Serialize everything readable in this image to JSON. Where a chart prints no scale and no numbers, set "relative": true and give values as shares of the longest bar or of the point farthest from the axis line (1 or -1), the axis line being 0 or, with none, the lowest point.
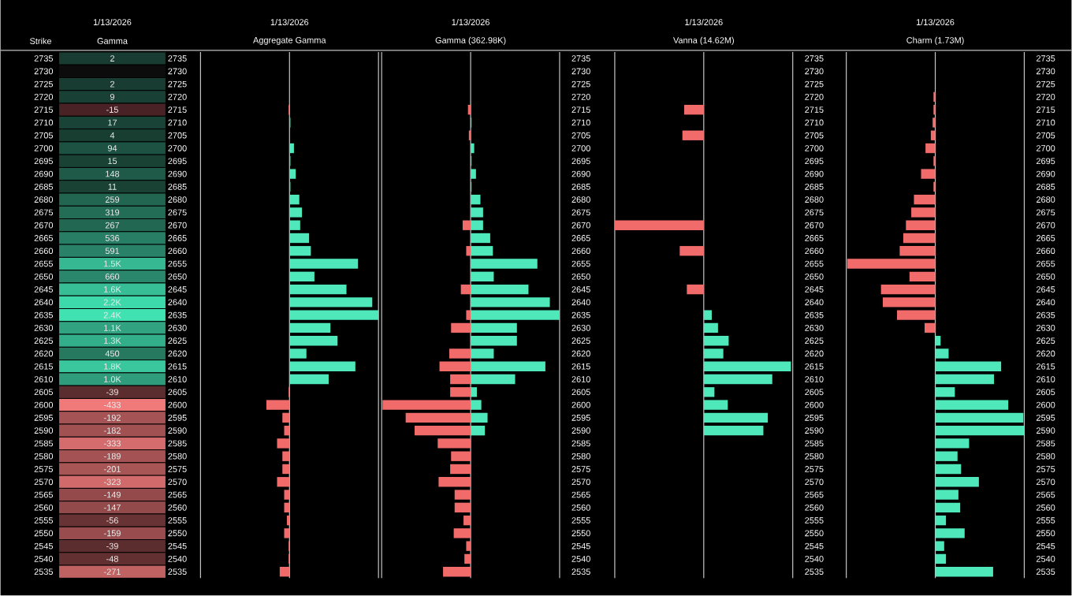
{
  "chart_data": [
    {
      "type": "heatmap",
      "title": "Gamma",
      "subtitle": "1/13/2026",
      "ylabel": "Strike",
      "categories": [
        null
      ],
      "y_categories": [
        "2735",
        "2730",
        "2725",
        "2720",
        "2715",
        "2710",
        "2705",
        "2700",
        "2695",
        "2690",
        "2685",
        "2680",
        "2675",
        "2670",
        "2665",
        "2660",
        "2655",
        "2650",
        "2645",
        "2640",
        "2635",
        "2630",
        "2625",
        "2620",
        "2615",
        "2610",
        "2605",
        "2600",
        "2595",
        "2590",
        "2585",
        "2580",
        "2575",
        "2570",
        "2565",
        "2560",
        "2555",
        "2550",
        "2545",
        "2540",
        "2535"
      ],
      "y2_categories": [
        "2735",
        "2730",
        "2725",
        "2720",
        "2715",
        "2710",
        "2705",
        "2700",
        "2695",
        "2690",
        "2685",
        "2680",
        "2675",
        "2670",
        "2665",
        "2660",
        "2655",
        "2650",
        "2645",
        "2640",
        "2635",
        "2630",
        "2625",
        "2620",
        "2615",
        "2610",
        "2605",
        "2600",
        "2595",
        "2590",
        "2585",
        "2580",
        "2575",
        "2570",
        "2565",
        "2560",
        "2555",
        "2550",
        "2545",
        "2540",
        "2535"
      ],
      "cells": [
        [
          2
        ],
        [
          null
        ],
        [
          2
        ],
        [
          9
        ],
        [
          -15
        ],
        [
          17
        ],
        [
          4
        ],
        [
          94
        ],
        [
          15
        ],
        [
          148
        ],
        [
          11
        ],
        [
          259
        ],
        [
          319
        ],
        [
          267
        ],
        [
          536
        ],
        [
          591
        ],
        [
          1500
        ],
        [
          660
        ],
        [
          1600
        ],
        [
          2200
        ],
        [
          2400
        ],
        [
          1100
        ],
        [
          1300
        ],
        [
          450
        ],
        [
          1800
        ],
        [
          1000
        ],
        [
          -39
        ],
        [
          -433
        ],
        [
          -192
        ],
        [
          -182
        ],
        [
          -333
        ],
        [
          -189
        ],
        [
          -201
        ],
        [
          -323
        ],
        [
          -149
        ],
        [
          -147
        ],
        [
          -56
        ],
        [
          -159
        ],
        [
          -39
        ],
        [
          -48
        ],
        [
          -271
        ]
      ],
      "cell_labels": [
        [
          "2"
        ],
        [
          null
        ],
        [
          "2"
        ],
        [
          "9"
        ],
        [
          "-15"
        ],
        [
          "17"
        ],
        [
          "4"
        ],
        [
          "94"
        ],
        [
          "15"
        ],
        [
          "148"
        ],
        [
          "11"
        ],
        [
          "259"
        ],
        [
          "319"
        ],
        [
          "267"
        ],
        [
          "536"
        ],
        [
          "591"
        ],
        [
          "1.5K"
        ],
        [
          "660"
        ],
        [
          "1.6K"
        ],
        [
          "2.2K"
        ],
        [
          "2.4K"
        ],
        [
          "1.1K"
        ],
        [
          "1.3K"
        ],
        [
          "450"
        ],
        [
          "1.8K"
        ],
        [
          "1.0K"
        ],
        [
          "-39"
        ],
        [
          "-433"
        ],
        [
          "-192"
        ],
        [
          "-182"
        ],
        [
          "-333"
        ],
        [
          "-189"
        ],
        [
          "-201"
        ],
        [
          "-323"
        ],
        [
          "-149"
        ],
        [
          "-147"
        ],
        [
          "-56"
        ],
        [
          "-159"
        ],
        [
          "-39"
        ],
        [
          "-48"
        ],
        [
          "-271"
        ]
      ]
    },
    {
      "type": "bar",
      "orientation": "horizontal",
      "relative": true,
      "tick_labels": false,
      "title": "Aggregate Gamma",
      "subtitle": "1/13/2026",
      "categories": [
        "2735",
        "2730",
        "2725",
        "2720",
        "2715",
        "2710",
        "2705",
        "2700",
        "2695",
        "2690",
        "2685",
        "2680",
        "2675",
        "2670",
        "2665",
        "2660",
        "2655",
        "2650",
        "2645",
        "2640",
        "2635",
        "2630",
        "2625",
        "2620",
        "2615",
        "2610",
        "2605",
        "2600",
        "2595",
        "2590",
        "2585",
        "2580",
        "2575",
        "2570",
        "2565",
        "2560",
        "2555",
        "2550",
        "2545",
        "2540",
        "2535"
      ],
      "values": [
        null,
        null,
        null,
        null,
        -0.01,
        0.01,
        null,
        0.05,
        0.01,
        0.07,
        0.01,
        0.11,
        0.14,
        0.12,
        0.22,
        0.24,
        0.77,
        0.28,
        0.64,
        0.93,
        1,
        0.46,
        0.54,
        0.19,
        0.74,
        0.44,
        -0.01,
        -0.26,
        -0.08,
        -0.06,
        -0.14,
        -0.08,
        -0.08,
        -0.14,
        -0.06,
        -0.06,
        -0.03,
        -0.06,
        -0.01,
        -0.01,
        -0.11
      ],
      "colors": [
        null,
        null,
        null,
        null,
        "#f26b6b",
        "#4ee8bb",
        null,
        "#4ee8bb",
        "#4ee8bb",
        "#4ee8bb",
        "#4ee8bb",
        "#4ee8bb",
        "#4ee8bb",
        "#4ee8bb",
        "#4ee8bb",
        "#4ee8bb",
        "#4ee8bb",
        "#4ee8bb",
        "#4ee8bb",
        "#4ee8bb",
        "#4ee8bb",
        "#4ee8bb",
        "#4ee8bb",
        "#4ee8bb",
        "#4ee8bb",
        "#4ee8bb",
        "#f26b6b",
        "#f26b6b",
        "#f26b6b",
        "#f26b6b",
        "#f26b6b",
        "#f26b6b",
        "#f26b6b",
        "#f26b6b",
        "#f26b6b",
        "#f26b6b",
        "#f26b6b",
        "#f26b6b",
        "#f26b6b",
        "#f26b6b",
        "#f26b6b"
      ]
    },
    {
      "type": "bar",
      "orientation": "horizontal",
      "relative": true,
      "tick_labels": "y",
      "title": "Gamma (362.98K)",
      "subtitle": "1/13/2026",
      "categories": [
        "2735",
        "2730",
        "2725",
        "2720",
        "2715",
        "2710",
        "2705",
        "2700",
        "2695",
        "2690",
        "2685",
        "2680",
        "2675",
        "2670",
        "2665",
        "2660",
        "2655",
        "2650",
        "2645",
        "2640",
        "2635",
        "2630",
        "2625",
        "2620",
        "2615",
        "2610",
        "2605",
        "2600",
        "2595",
        "2590",
        "2585",
        "2580",
        "2575",
        "2570",
        "2565",
        "2560",
        "2555",
        "2550",
        "2545",
        "2540",
        "2535"
      ],
      "series": [
        {
          "color": "#f26b6b",
          "values": [
            null,
            null,
            null,
            null,
            -0.03,
            null,
            -0.02,
            null,
            null,
            null,
            null,
            null,
            null,
            -0.09,
            null,
            -0.05,
            null,
            null,
            -0.11,
            null,
            -0.05,
            -0.22,
            null,
            -0.24,
            -0.35,
            -0.23,
            -0.23,
            -0.99,
            -0.73,
            -0.63,
            -0.37,
            -0.22,
            -0.23,
            -0.36,
            -0.18,
            -0.18,
            -0.08,
            -0.19,
            -0.05,
            -0.07,
            -0.31
          ]
        },
        {
          "color": "#4ee8bb",
          "values": [
            null,
            null,
            null,
            null,
            null,
            0.01,
            null,
            0.04,
            0.01,
            0.06,
            0.01,
            0.11,
            0.14,
            0.14,
            0.22,
            0.25,
            0.75,
            0.26,
            0.65,
            0.89,
            1,
            0.52,
            0.52,
            0.26,
            0.84,
            0.5,
            0.07,
            0.12,
            0.19,
            0.16,
            null,
            null,
            null,
            null,
            null,
            null,
            null,
            null,
            null,
            null,
            null
          ]
        }
      ]
    },
    {
      "type": "bar",
      "orientation": "horizontal",
      "relative": true,
      "tick_labels": "y",
      "title": "Vanna (14.62M)",
      "subtitle": "1/13/2026",
      "categories": [
        "2735",
        "2730",
        "2725",
        "2720",
        "2715",
        "2710",
        "2705",
        "2700",
        "2695",
        "2690",
        "2685",
        "2680",
        "2675",
        "2670",
        "2665",
        "2660",
        "2655",
        "2650",
        "2645",
        "2640",
        "2635",
        "2630",
        "2625",
        "2620",
        "2615",
        "2610",
        "2605",
        "2600",
        "2595",
        "2590",
        "2585",
        "2580",
        "2575",
        "2570",
        "2565",
        "2560",
        "2555",
        "2550",
        "2545",
        "2540",
        "2535"
      ],
      "values": [
        null,
        null,
        null,
        null,
        -0.22,
        null,
        -0.24,
        null,
        null,
        null,
        null,
        null,
        null,
        -1,
        null,
        -0.27,
        null,
        null,
        -0.19,
        null,
        0.09,
        0.16,
        0.28,
        0.22,
        0.98,
        0.77,
        0.12,
        0.27,
        0.72,
        0.67,
        null,
        null,
        null,
        null,
        null,
        null,
        null,
        null,
        null,
        null,
        null
      ],
      "colors": [
        null,
        null,
        null,
        null,
        "#f26b6b",
        null,
        "#f26b6b",
        null,
        null,
        null,
        null,
        null,
        null,
        "#f26b6b",
        null,
        "#f26b6b",
        null,
        null,
        "#f26b6b",
        null,
        "#4ee8bb",
        "#4ee8bb",
        "#4ee8bb",
        "#4ee8bb",
        "#4ee8bb",
        "#4ee8bb",
        "#4ee8bb",
        "#4ee8bb",
        "#4ee8bb",
        "#4ee8bb",
        null,
        null,
        null,
        null,
        null,
        null,
        null,
        null,
        null,
        null,
        null
      ]
    },
    {
      "type": "bar",
      "orientation": "horizontal",
      "relative": true,
      "tick_labels": "y",
      "title": "Charm (1.73M)",
      "subtitle": "1/13/2026",
      "categories": [
        "2735",
        "2730",
        "2725",
        "2720",
        "2715",
        "2710",
        "2705",
        "2700",
        "2695",
        "2690",
        "2685",
        "2680",
        "2675",
        "2670",
        "2665",
        "2660",
        "2655",
        "2650",
        "2645",
        "2640",
        "2635",
        "2630",
        "2625",
        "2620",
        "2615",
        "2610",
        "2605",
        "2600",
        "2595",
        "2590",
        "2585",
        "2580",
        "2575",
        "2570",
        "2565",
        "2560",
        "2555",
        "2550",
        "2545",
        "2540",
        "2535"
      ],
      "values": [
        null,
        null,
        null,
        -0.02,
        -0.02,
        -0.03,
        -0.05,
        -0.11,
        -0.02,
        -0.16,
        -0.02,
        -0.24,
        -0.27,
        -0.33,
        -0.36,
        -0.4,
        -0.99,
        -0.29,
        -0.61,
        -0.59,
        -0.43,
        -0.12,
        0.06,
        0.15,
        0.74,
        0.66,
        0.22,
        0.82,
        0.99,
        1,
        0.38,
        0.25,
        0.29,
        0.49,
        0.26,
        0.28,
        0.12,
        0.33,
        0.1,
        0.12,
        0.65
      ],
      "colors": [
        null,
        null,
        null,
        "#f26b6b",
        "#f26b6b",
        "#f26b6b",
        "#f26b6b",
        "#f26b6b",
        "#f26b6b",
        "#f26b6b",
        "#f26b6b",
        "#f26b6b",
        "#f26b6b",
        "#f26b6b",
        "#f26b6b",
        "#f26b6b",
        "#f26b6b",
        "#f26b6b",
        "#f26b6b",
        "#f26b6b",
        "#f26b6b",
        "#f26b6b",
        "#4ee8bb",
        "#4ee8bb",
        "#4ee8bb",
        "#4ee8bb",
        "#4ee8bb",
        "#4ee8bb",
        "#4ee8bb",
        "#4ee8bb",
        "#4ee8bb",
        "#4ee8bb",
        "#4ee8bb",
        "#4ee8bb",
        "#4ee8bb",
        "#4ee8bb",
        "#4ee8bb",
        "#4ee8bb",
        "#4ee8bb",
        "#4ee8bb",
        "#4ee8bb"
      ]
    }
  ]
}
